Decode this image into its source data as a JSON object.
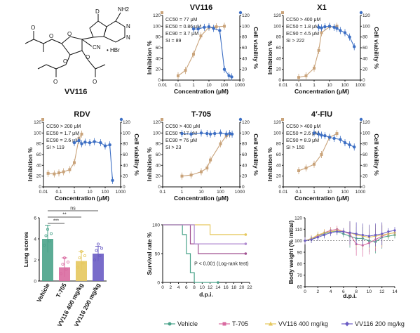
{
  "figure": {
    "compound_label": "VV116",
    "chem_labels": {
      "d": "D",
      "nh2": "NH2",
      "cn": "CN",
      "hbr": "• HBr",
      "o": "O",
      "n": "N"
    }
  },
  "chart_data": [
    {
      "id": "vv116",
      "type": "line",
      "title": "VV116",
      "xlabel": "Concentration (μM)",
      "ylabel": "Inhibition %",
      "ylabel_right": "Cell viability %",
      "xscale": "log",
      "xlim": [
        0.01,
        1000
      ],
      "ylim": [
        0,
        120
      ],
      "xticks": [
        "0.01",
        "0.1",
        "1",
        "10",
        "100",
        "1000"
      ],
      "yticks": [
        0,
        20,
        40,
        60,
        80,
        100,
        120
      ],
      "annotations": [
        "CC50 = 77 μM",
        "EC50 = 0.86 μM",
        "EC90 = 3.7 μM",
        "SI = 89"
      ],
      "series": [
        {
          "name": "Inhibition",
          "color": "#c9a37a",
          "x": [
            0.1,
            0.3,
            1,
            3,
            10,
            30,
            100
          ],
          "y": [
            8,
            18,
            48,
            82,
            98,
            99,
            100
          ]
        },
        {
          "name": "Cell viability",
          "color": "#3d6fc4",
          "x": [
            1,
            2,
            5,
            10,
            20,
            50,
            100,
            200,
            300
          ],
          "y": [
            95,
            95,
            98,
            99,
            96,
            92,
            20,
            8,
            6
          ]
        }
      ]
    },
    {
      "id": "x1",
      "type": "line",
      "title": "X1",
      "xlabel": "Concentration (μM)",
      "ylabel": "Inhibition %",
      "ylabel_right": "Cell viability %",
      "xscale": "log",
      "xlim": [
        0.01,
        1000
      ],
      "ylim": [
        0,
        120
      ],
      "xticks": [
        "0.01",
        "0.1",
        "1",
        "10",
        "100",
        "1000"
      ],
      "yticks": [
        0,
        20,
        40,
        60,
        80,
        100,
        120
      ],
      "annotations": [
        "CC50 > 400 μM",
        "EC50 = 1.8 μM",
        "EC90 = 4.5 μM",
        "SI > 222"
      ],
      "series": [
        {
          "name": "Inhibition",
          "color": "#c9a37a",
          "x": [
            0.1,
            0.3,
            1,
            2,
            3,
            10,
            30
          ],
          "y": [
            5,
            8,
            22,
            55,
            88,
            99,
            100
          ]
        },
        {
          "name": "Cell viability",
          "color": "#3d6fc4",
          "x": [
            2,
            3,
            5,
            10,
            20,
            30,
            50,
            100,
            200,
            400
          ],
          "y": [
            98,
            97,
            99,
            100,
            98,
            96,
            92,
            88,
            80,
            62
          ]
        }
      ]
    },
    {
      "id": "rdv",
      "type": "line",
      "title": "RDV",
      "xlabel": "Concentration (μM)",
      "ylabel": "Inhibition %",
      "ylabel_right": "Cell viability %",
      "xscale": "log",
      "xlim": [
        0.01,
        1000
      ],
      "ylim": [
        0,
        120
      ],
      "xticks": [
        "0.01",
        "0.1",
        "1",
        "10",
        "100",
        "1000"
      ],
      "yticks": [
        0,
        20,
        40,
        60,
        80,
        100,
        120
      ],
      "annotations": [
        "CC50 > 200 μM",
        "EC50 = 1.7 μM",
        "EC90 = 2.6 μM",
        "SI > 119"
      ],
      "series": [
        {
          "name": "Inhibition",
          "color": "#c9a37a",
          "x": [
            0.02,
            0.05,
            0.1,
            0.2,
            0.5,
            1,
            2,
            3
          ],
          "y": [
            25,
            24,
            26,
            28,
            32,
            45,
            90,
            98
          ]
        },
        {
          "name": "Cell viability",
          "color": "#3d6fc4",
          "x": [
            1,
            2,
            3,
            5,
            10,
            20,
            50,
            100,
            200,
            300
          ],
          "y": [
            82,
            86,
            80,
            83,
            82,
            84,
            82,
            76,
            78,
            12
          ]
        }
      ]
    },
    {
      "id": "t705",
      "type": "line",
      "title": "T-705",
      "xlabel": "Concentration (μM)",
      "ylabel": "Inhibition %",
      "ylabel_right": "Cell viability %",
      "xscale": "log",
      "xlim": [
        0.1,
        1000
      ],
      "ylim": [
        0,
        120
      ],
      "xticks": [
        "0.1",
        "1",
        "10",
        "100",
        "1000"
      ],
      "yticks": [
        0,
        20,
        40,
        60,
        80,
        100,
        120
      ],
      "annotations": [
        "CC50 > 400 μM",
        "EC50 = 17 μM",
        "EC90 = 76 μM",
        "SI > 23"
      ],
      "series": [
        {
          "name": "Inhibition",
          "color": "#c9a37a",
          "x": [
            1,
            3,
            10,
            20,
            30,
            100,
            200,
            300
          ],
          "y": [
            20,
            22,
            28,
            35,
            50,
            80,
            95,
            98
          ]
        },
        {
          "name": "Cell viability",
          "color": "#3d6fc4",
          "x": [
            1,
            3,
            10,
            20,
            30,
            50,
            100,
            200,
            300,
            400
          ],
          "y": [
            99,
            98,
            100,
            99,
            98,
            99,
            100,
            98,
            99,
            98
          ]
        }
      ]
    },
    {
      "id": "fiu",
      "type": "line",
      "title": "4′-FlU",
      "xlabel": "Concentration (μM)",
      "ylabel": "Inhibition %",
      "ylabel_right": "Cell viability %",
      "xscale": "log",
      "xlim": [
        0.01,
        1000
      ],
      "ylim": [
        0,
        120
      ],
      "xticks": [
        "0.01",
        "0.1",
        "1",
        "10",
        "100",
        "1000"
      ],
      "yticks": [
        0,
        20,
        40,
        60,
        80,
        100,
        120
      ],
      "annotations": [
        "CC50 > 400 μM",
        "EC50 = 2.6 μM",
        "EC90 = 8.9 μM",
        "SI > 150"
      ],
      "series": [
        {
          "name": "Inhibition",
          "color": "#c9a37a",
          "x": [
            0.1,
            0.3,
            1,
            3,
            10,
            30
          ],
          "y": [
            30,
            35,
            42,
            60,
            92,
            99
          ]
        },
        {
          "name": "Cell viability",
          "color": "#3d6fc4",
          "x": [
            1,
            2,
            3,
            5,
            10,
            20,
            50,
            100,
            200,
            400
          ],
          "y": [
            100,
            98,
            96,
            95,
            92,
            90,
            88,
            82,
            78,
            74
          ]
        }
      ]
    },
    {
      "id": "lung",
      "type": "bar",
      "ylabel": "Lung scores",
      "ylim": [
        0,
        6
      ],
      "yticks": [
        0,
        2,
        4,
        6
      ],
      "categories": [
        "Vehicle",
        "T-705",
        "VV116 400 mg/kg",
        "VV116 200 mg/kg"
      ],
      "values": [
        4.0,
        1.3,
        1.9,
        2.6
      ],
      "errors": [
        1.3,
        0.9,
        0.9,
        0.7
      ],
      "colors": [
        "#4aa38a",
        "#d96aa0",
        "#e6c85e",
        "#6a5cc4"
      ],
      "significance": [
        "ns",
        "**",
        "***"
      ]
    },
    {
      "id": "survival",
      "type": "line",
      "xlabel": "d.p.i.",
      "ylabel": "Survival rate %",
      "xlim": [
        0,
        22
      ],
      "ylim": [
        0,
        100
      ],
      "xticks": [
        0,
        2,
        4,
        6,
        8,
        10,
        12,
        14,
        16,
        18,
        20,
        22
      ],
      "yticks": [
        0,
        50,
        100
      ],
      "annotation": "P < 0.001 (Log-rank test)",
      "series": [
        {
          "name": "Vehicle",
          "color": "#4aa38a",
          "x": [
            0,
            5,
            5,
            6,
            6,
            7,
            7,
            8,
            8,
            14
          ],
          "y": [
            100,
            100,
            83,
            83,
            50,
            50,
            17,
            17,
            0,
            0
          ]
        },
        {
          "name": "T-705",
          "color": "#a05090",
          "x": [
            0,
            7,
            7,
            9,
            9,
            21
          ],
          "y": [
            100,
            100,
            67,
            67,
            50,
            50
          ]
        },
        {
          "name": "VV116 400 mg/kg",
          "color": "#e6c85e",
          "x": [
            0,
            12,
            12,
            21
          ],
          "y": [
            100,
            100,
            83,
            83
          ]
        },
        {
          "name": "VV116 200 mg/kg",
          "color": "#b08ad0",
          "x": [
            0,
            8,
            8,
            21
          ],
          "y": [
            100,
            100,
            67,
            67
          ]
        }
      ]
    },
    {
      "id": "bodyweight",
      "type": "line",
      "xlabel": "d.p.i.",
      "ylabel": "Body weight (% initial)",
      "xlim": [
        0,
        14
      ],
      "ylim": [
        60,
        120
      ],
      "xticks": [
        0,
        2,
        4,
        6,
        8,
        10,
        12,
        14
      ],
      "yticks": [
        60,
        70,
        80,
        90,
        100,
        110,
        120
      ],
      "series": [
        {
          "name": "Vehicle",
          "color": "#4aa38a",
          "x": [
            0,
            1,
            2,
            3,
            4,
            5,
            6,
            7,
            8,
            9,
            10,
            11,
            12,
            13,
            14
          ],
          "y": [
            100,
            101,
            104,
            106,
            108,
            108,
            106,
            104,
            102,
            102,
            100,
            99,
            103,
            104,
            105
          ]
        },
        {
          "name": "T-705",
          "color": "#d96aa0",
          "x": [
            0,
            1,
            2,
            3,
            4,
            5,
            6,
            7,
            8,
            9,
            10,
            11,
            12,
            13,
            14
          ],
          "y": [
            100,
            102,
            104,
            107,
            109,
            110,
            108,
            106,
            97,
            96,
            98,
            101,
            104,
            106,
            107
          ]
        },
        {
          "name": "VV116 400 mg/kg",
          "color": "#e6c85e",
          "x": [
            0,
            1,
            2,
            3,
            4,
            5,
            6,
            7,
            8,
            9,
            10,
            11,
            12,
            13,
            14
          ],
          "y": [
            100,
            102,
            105,
            107,
            108,
            109,
            108,
            107,
            105,
            104,
            103,
            104,
            105,
            106,
            107
          ]
        },
        {
          "name": "VV116 200 mg/kg",
          "color": "#6a5cc4",
          "x": [
            0,
            1,
            2,
            3,
            4,
            5,
            6,
            7,
            8,
            9,
            10,
            11,
            12,
            13,
            14
          ],
          "y": [
            100,
            101,
            103,
            105,
            107,
            108,
            108,
            107,
            106,
            105,
            104,
            105,
            106,
            108,
            109
          ]
        }
      ]
    }
  ],
  "legend": [
    {
      "label": "Vehicle",
      "color": "#4aa38a",
      "marker": "circle"
    },
    {
      "label": "T-705",
      "color": "#d96aa0",
      "marker": "square"
    },
    {
      "label": "VV116 400 mg/kg",
      "color": "#e6c85e",
      "marker": "triangle"
    },
    {
      "label": "VV116 200 mg/kg",
      "color": "#6a5cc4",
      "marker": "diamond"
    }
  ]
}
